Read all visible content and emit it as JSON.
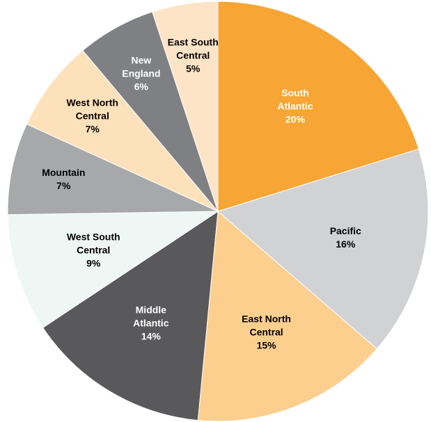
{
  "chart_data": {
    "type": "pie",
    "categories": [
      "South Atlantic",
      "Pacific",
      "East North Central",
      "Middle Atlantic",
      "West South Central",
      "Mountain",
      "West North Central",
      "New England",
      "East South Central"
    ],
    "values": [
      20,
      16,
      15,
      14,
      9,
      7,
      7,
      6,
      5
    ],
    "value_labels": [
      "20%",
      "16%",
      "15%",
      "14%",
      "9%",
      "7%",
      "7%",
      "6%",
      "5%"
    ],
    "colors": [
      "#f7a535",
      "#d1d2d4",
      "#fccf8f",
      "#59595b",
      "#eef7f3",
      "#a7a8aa",
      "#fde1bb",
      "#7f8083",
      "#fee4c6"
    ]
  }
}
